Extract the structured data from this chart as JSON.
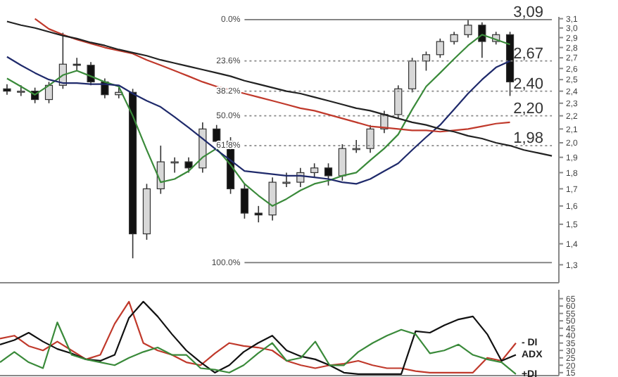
{
  "chart_data": [
    {
      "type": "candlestick",
      "log": true,
      "tick_labels": "y",
      "categories": [
        null,
        null,
        null,
        null,
        null,
        null,
        null,
        null,
        null,
        null,
        null,
        null,
        null,
        null,
        null,
        null,
        null,
        null,
        null,
        null,
        null,
        null,
        null,
        null,
        null,
        null,
        null,
        null,
        null,
        null,
        null,
        null,
        null,
        null,
        null,
        null,
        null,
        null,
        null,
        null
      ],
      "ohlc": [
        [
          2.42,
          2.46,
          2.37,
          2.4
        ],
        [
          2.4,
          2.45,
          2.36,
          2.4
        ],
        [
          2.4,
          2.43,
          2.3,
          2.33
        ],
        [
          2.33,
          2.48,
          2.3,
          2.45
        ],
        [
          2.45,
          2.95,
          2.42,
          2.64
        ],
        [
          2.64,
          2.7,
          2.58,
          2.63
        ],
        [
          2.63,
          2.66,
          2.45,
          2.48
        ],
        [
          2.48,
          2.51,
          2.34,
          2.37
        ],
        [
          2.37,
          2.43,
          2.34,
          2.39
        ],
        [
          2.39,
          2.42,
          1.33,
          1.45
        ],
        [
          1.45,
          1.73,
          1.42,
          1.7
        ],
        [
          1.7,
          1.98,
          1.67,
          1.87
        ],
        [
          1.87,
          1.9,
          1.8,
          1.87
        ],
        [
          1.87,
          1.9,
          1.8,
          1.83
        ],
        [
          1.83,
          2.15,
          1.8,
          2.1
        ],
        [
          2.1,
          2.13,
          1.98,
          2.01
        ],
        [
          2.01,
          2.04,
          1.67,
          1.7
        ],
        [
          1.7,
          1.73,
          1.53,
          1.56
        ],
        [
          1.56,
          1.6,
          1.51,
          1.55
        ],
        [
          1.55,
          1.77,
          1.52,
          1.74
        ],
        [
          1.74,
          1.8,
          1.71,
          1.74
        ],
        [
          1.74,
          1.83,
          1.71,
          1.8
        ],
        [
          1.8,
          1.86,
          1.77,
          1.83
        ],
        [
          1.83,
          1.86,
          1.72,
          1.78
        ],
        [
          1.78,
          1.99,
          1.75,
          1.96
        ],
        [
          1.96,
          2.02,
          1.93,
          1.96
        ],
        [
          1.96,
          2.13,
          1.93,
          2.1
        ],
        [
          2.1,
          2.24,
          2.07,
          2.21
        ],
        [
          2.21,
          2.45,
          2.18,
          2.42
        ],
        [
          2.42,
          2.7,
          2.39,
          2.67
        ],
        [
          2.67,
          2.76,
          2.58,
          2.73
        ],
        [
          2.73,
          2.89,
          2.7,
          2.86
        ],
        [
          2.86,
          2.96,
          2.83,
          2.93
        ],
        [
          2.93,
          3.09,
          2.9,
          3.03
        ],
        [
          3.03,
          3.06,
          2.7,
          2.86
        ],
        [
          2.86,
          2.96,
          2.83,
          2.93
        ],
        [
          2.93,
          2.96,
          2.36,
          2.48
        ],
        null,
        null,
        null
      ],
      "series": [
        {
          "type": "line",
          "color": "#3a8a3a",
          "values": [
            2.51,
            2.44,
            2.37,
            2.45,
            2.54,
            2.58,
            2.53,
            2.48,
            2.44,
            2.2,
            1.95,
            1.74,
            1.76,
            1.81,
            1.9,
            1.96,
            1.85,
            1.73,
            1.66,
            1.6,
            1.64,
            1.69,
            1.73,
            1.75,
            1.78,
            1.8,
            1.88,
            1.96,
            2.06,
            2.25,
            2.44,
            2.56,
            2.69,
            2.82,
            2.93,
            2.88,
            2.83,
            null,
            null,
            null
          ]
        },
        {
          "type": "line",
          "color": "#1f2a6b",
          "values": [
            2.71,
            2.63,
            2.56,
            2.5,
            2.47,
            2.47,
            2.46,
            2.46,
            2.45,
            2.38,
            2.32,
            2.27,
            2.19,
            2.11,
            2.03,
            1.95,
            1.88,
            1.81,
            1.8,
            1.79,
            1.78,
            1.78,
            1.77,
            1.76,
            1.74,
            1.73,
            1.76,
            1.81,
            1.86,
            1.95,
            2.04,
            2.13,
            2.25,
            2.38,
            2.5,
            2.61,
            2.67,
            null,
            null,
            null
          ]
        },
        {
          "type": "line",
          "color": "#c0392b",
          "values": [
            null,
            null,
            3.1,
            2.99,
            2.93,
            2.88,
            2.84,
            2.8,
            2.77,
            2.74,
            2.68,
            2.63,
            2.58,
            2.53,
            2.48,
            2.44,
            2.41,
            2.38,
            2.35,
            2.32,
            2.29,
            2.26,
            2.24,
            2.21,
            2.18,
            2.15,
            2.12,
            2.11,
            2.1,
            2.09,
            2.09,
            2.08,
            2.09,
            2.1,
            2.12,
            2.14,
            2.15,
            null,
            null,
            null
          ]
        },
        {
          "type": "line",
          "color": "#222222",
          "values": [
            3.07,
            3.03,
            3.0,
            2.96,
            2.92,
            2.89,
            2.85,
            2.82,
            2.78,
            2.75,
            2.72,
            2.68,
            2.65,
            2.62,
            2.59,
            2.56,
            2.53,
            2.49,
            2.46,
            2.43,
            2.4,
            2.38,
            2.35,
            2.32,
            2.29,
            2.26,
            2.24,
            2.21,
            2.18,
            2.15,
            2.13,
            2.1,
            2.08,
            2.05,
            2.03,
            2.0,
            1.98,
            1.95,
            1.93,
            1.91
          ]
        }
      ],
      "ref_lines": [
        {
          "axis": "y",
          "value": 3.09,
          "label": "3,09",
          "color": "#777777",
          "line_style": "solid"
        },
        {
          "axis": "y",
          "value": 2.67,
          "label": "2,67",
          "color": "#888888",
          "line_style": "dotted"
        },
        {
          "axis": "y",
          "value": 2.4,
          "label": "2,40",
          "color": "#888888",
          "line_style": "dotted"
        },
        {
          "axis": "y",
          "value": 2.2,
          "label": "2,20",
          "color": "#888888",
          "line_style": "dotted"
        },
        {
          "axis": "y",
          "value": 1.98,
          "label": "1,98",
          "color": "#888888",
          "line_style": "dotted"
        },
        {
          "axis": "y",
          "value": 1.31,
          "color": "#777777",
          "line_style": "solid"
        }
      ],
      "annotations": [
        "0.0%",
        "23.6%",
        "38.2%",
        "50.0%",
        "61.8%",
        "100.0%"
      ],
      "ylim": [
        1.22,
        3.12
      ],
      "yticks": [
        {
          "value": 1.3,
          "label": "1,3"
        },
        {
          "value": 1.4,
          "label": "1,4"
        },
        {
          "value": 1.5,
          "label": "1,5"
        },
        {
          "value": 1.6,
          "label": "1,6"
        },
        {
          "value": 1.7,
          "label": "1,7"
        },
        {
          "value": 1.8,
          "label": "1,8"
        },
        {
          "value": 1.9,
          "label": "1,9"
        },
        {
          "value": 2.0,
          "label": "2,0"
        },
        {
          "value": 2.1,
          "label": "2,1"
        },
        {
          "value": 2.2,
          "label": "2,2"
        },
        {
          "value": 2.3,
          "label": "2,3"
        },
        {
          "value": 2.4,
          "label": "2,4"
        },
        {
          "value": 2.5,
          "label": "2,5"
        },
        {
          "value": 2.6,
          "label": "2,6"
        },
        {
          "value": 2.7,
          "label": "2,7"
        },
        {
          "value": 2.8,
          "label": "2,8"
        },
        {
          "value": 2.9,
          "label": "2,9"
        },
        {
          "value": 3.0,
          "label": "3,0"
        },
        {
          "value": 3.1,
          "label": "3,1"
        }
      ]
    },
    {
      "type": "line",
      "tick_labels": "y",
      "categories": [
        null,
        null,
        null,
        null,
        null,
        null,
        null,
        null,
        null,
        null,
        null,
        null,
        null,
        null,
        null,
        null,
        null,
        null,
        null,
        null,
        null,
        null,
        null,
        null,
        null,
        null,
        null,
        null,
        null,
        null,
        null,
        null,
        null,
        null,
        null,
        null,
        null,
        null,
        null,
        null
      ],
      "series": [
        {
          "name": "- DI",
          "color": "#c0392b",
          "values": [
            38,
            40,
            33,
            30,
            36,
            30,
            24,
            27,
            48,
            63,
            35,
            30,
            27,
            22,
            20,
            28,
            35,
            33,
            32,
            30,
            23,
            20,
            18,
            20,
            21,
            23,
            20,
            18,
            18,
            16,
            15,
            15,
            15,
            15,
            25,
            23,
            35,
            null,
            null,
            null
          ]
        },
        {
          "name": "ADX",
          "color": "#111111",
          "values": [
            34,
            37,
            42,
            36,
            31,
            28,
            24,
            23,
            27,
            52,
            63,
            53,
            41,
            30,
            22,
            15,
            20,
            29,
            35,
            40,
            30,
            26,
            24,
            20,
            15,
            14,
            14,
            14,
            14,
            43,
            42,
            47,
            51,
            53,
            41,
            23,
            27,
            null,
            null,
            null
          ]
        },
        {
          "name": "+DI",
          "color": "#3a8a3a",
          "values": [
            22,
            29,
            22,
            18,
            49,
            27,
            24,
            22,
            20,
            25,
            29,
            32,
            27,
            27,
            18,
            17,
            15,
            20,
            28,
            35,
            23,
            25,
            36,
            20,
            20,
            29,
            35,
            40,
            44,
            41,
            28,
            30,
            34,
            27,
            24,
            22,
            14,
            null,
            null,
            null
          ]
        }
      ],
      "ylim": [
        13,
        71
      ],
      "yticks": [
        15,
        20,
        25,
        30,
        35,
        40,
        45,
        50,
        55,
        60,
        65
      ]
    }
  ]
}
